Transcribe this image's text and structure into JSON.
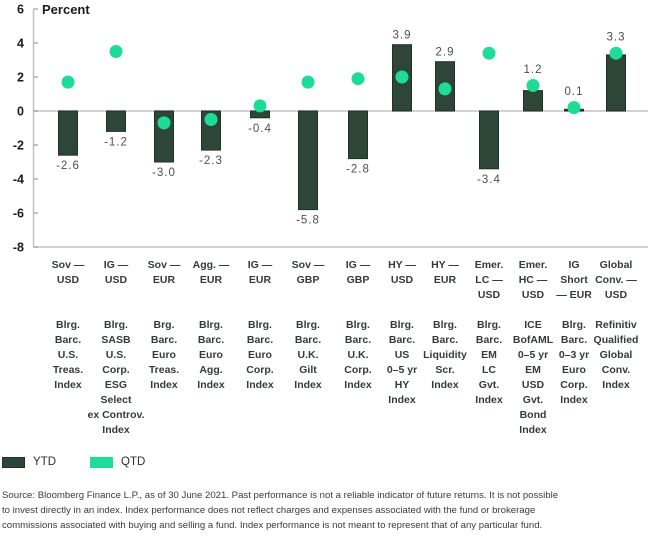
{
  "colors": {
    "bar_fill": "#2E4637",
    "bar_border": "#1E3226",
    "dot_fill": "#1EDC98",
    "axis_line": "#C4C4C4",
    "tick_mark": "#8A8A8A",
    "axis_text": "#1C1C1C",
    "value_label": "#4E4E4E",
    "category_text": "#333C36"
  },
  "legend": {
    "ytd_label": "YTD",
    "qtd_label": "QTD"
  },
  "source": {
    "lines": [
      "Source: Bloomberg Finance L.P., as of 30 June 2021. Past performance is not a reliable indicator of future returns. It is not possible",
      "to invest directly in an index. Index performance does not reflect charges and expenses associated with the fund or brokerage",
      "commissions associated with buying and selling a fund. Index performance is not meant to represent that of any particular fund."
    ]
  },
  "chart_data": {
    "type": "bar",
    "title": "",
    "ylabel": "Percent",
    "xlabel": "",
    "ylim": [
      -8,
      6
    ],
    "y_ticks": [
      6,
      4,
      2,
      0,
      -2,
      -4,
      -6,
      -8
    ],
    "grid": false,
    "legend_position": "bottom-left",
    "categories": [
      {
        "label": "Sov — USD",
        "lines": [
          "Sov —",
          "USD"
        ],
        "index_lines": [
          "Blrg.",
          "Barc.",
          "U.S.",
          "Treas.",
          "Index"
        ]
      },
      {
        "label": "IG — USD",
        "lines": [
          "IG —",
          "USD"
        ],
        "index_lines": [
          "Blrg.",
          "SASB",
          "U.S.",
          "Corp.",
          "ESG",
          "Select",
          "ex Controv.",
          "Index"
        ]
      },
      {
        "label": "Sov — EUR",
        "lines": [
          "Sov —",
          "EUR"
        ],
        "index_lines": [
          "Brg.",
          "Barc.",
          "Euro",
          "Treas.",
          "Index"
        ]
      },
      {
        "label": "Agg. — EUR",
        "lines": [
          "Agg. —",
          "EUR"
        ],
        "index_lines": [
          "Blrg.",
          "Barc.",
          "Euro",
          "Agg.",
          "Index"
        ]
      },
      {
        "label": "IG — EUR",
        "lines": [
          "IG —",
          "EUR"
        ],
        "index_lines": [
          "Blrg.",
          "Barc.",
          "Euro",
          "Corp.",
          "Index"
        ]
      },
      {
        "label": "Sov — GBP",
        "lines": [
          "Sov —",
          "GBP"
        ],
        "index_lines": [
          "Blrg.",
          "Barc.",
          "U.K.",
          "Gilt",
          "Index"
        ]
      },
      {
        "label": "IG — GBP",
        "lines": [
          "IG —",
          "GBP"
        ],
        "index_lines": [
          "Blrg.",
          "Barc.",
          "U.K.",
          "Corp.",
          "Index"
        ]
      },
      {
        "label": "HY — USD",
        "lines": [
          "HY —",
          "USD"
        ],
        "index_lines": [
          "Blrg.",
          "Barc.",
          "US",
          "0–5 yr",
          "HY",
          "Index"
        ]
      },
      {
        "label": "HY — EUR",
        "lines": [
          "HY —",
          "EUR"
        ],
        "index_lines": [
          "Blrg.",
          "Barc.",
          "Liquidity",
          "Scr.",
          "Index"
        ]
      },
      {
        "label": "Emer. LC — USD",
        "lines": [
          "Emer.",
          "LC —",
          "USD"
        ],
        "index_lines": [
          "Blrg.",
          "Barc.",
          "EM",
          "LC",
          "Gvt.",
          "Index"
        ]
      },
      {
        "label": "Emer. HC — USD",
        "lines": [
          "Emer.",
          "HC —",
          "USD"
        ],
        "index_lines": [
          "ICE",
          "BofAML",
          "0–5 yr",
          "EM",
          "USD",
          "Gvt.",
          "Bond",
          "Index"
        ]
      },
      {
        "label": "IG Short — EUR",
        "lines": [
          "IG",
          "Short",
          "— EUR"
        ],
        "index_lines": [
          "Blrg.",
          "Barc.",
          "0–3 yr",
          "Euro",
          "Corp.",
          "Index"
        ]
      },
      {
        "label": "Global Conv. — USD",
        "lines": [
          "Global",
          "Conv. —",
          "USD"
        ],
        "index_lines": [
          "Refinitiv",
          "Qualified",
          "Global",
          "Conv.",
          "Index"
        ]
      }
    ],
    "series": [
      {
        "name": "YTD",
        "type": "bar",
        "values": [
          -2.6,
          -1.2,
          -3.0,
          -2.3,
          -0.4,
          -5.8,
          -2.8,
          3.9,
          2.9,
          -3.4,
          1.2,
          0.1,
          3.3
        ]
      },
      {
        "name": "QTD",
        "type": "dot",
        "values": [
          1.7,
          3.5,
          -0.7,
          -0.5,
          0.3,
          1.7,
          1.9,
          2.0,
          1.3,
          3.4,
          1.5,
          0.2,
          3.4
        ]
      }
    ]
  }
}
